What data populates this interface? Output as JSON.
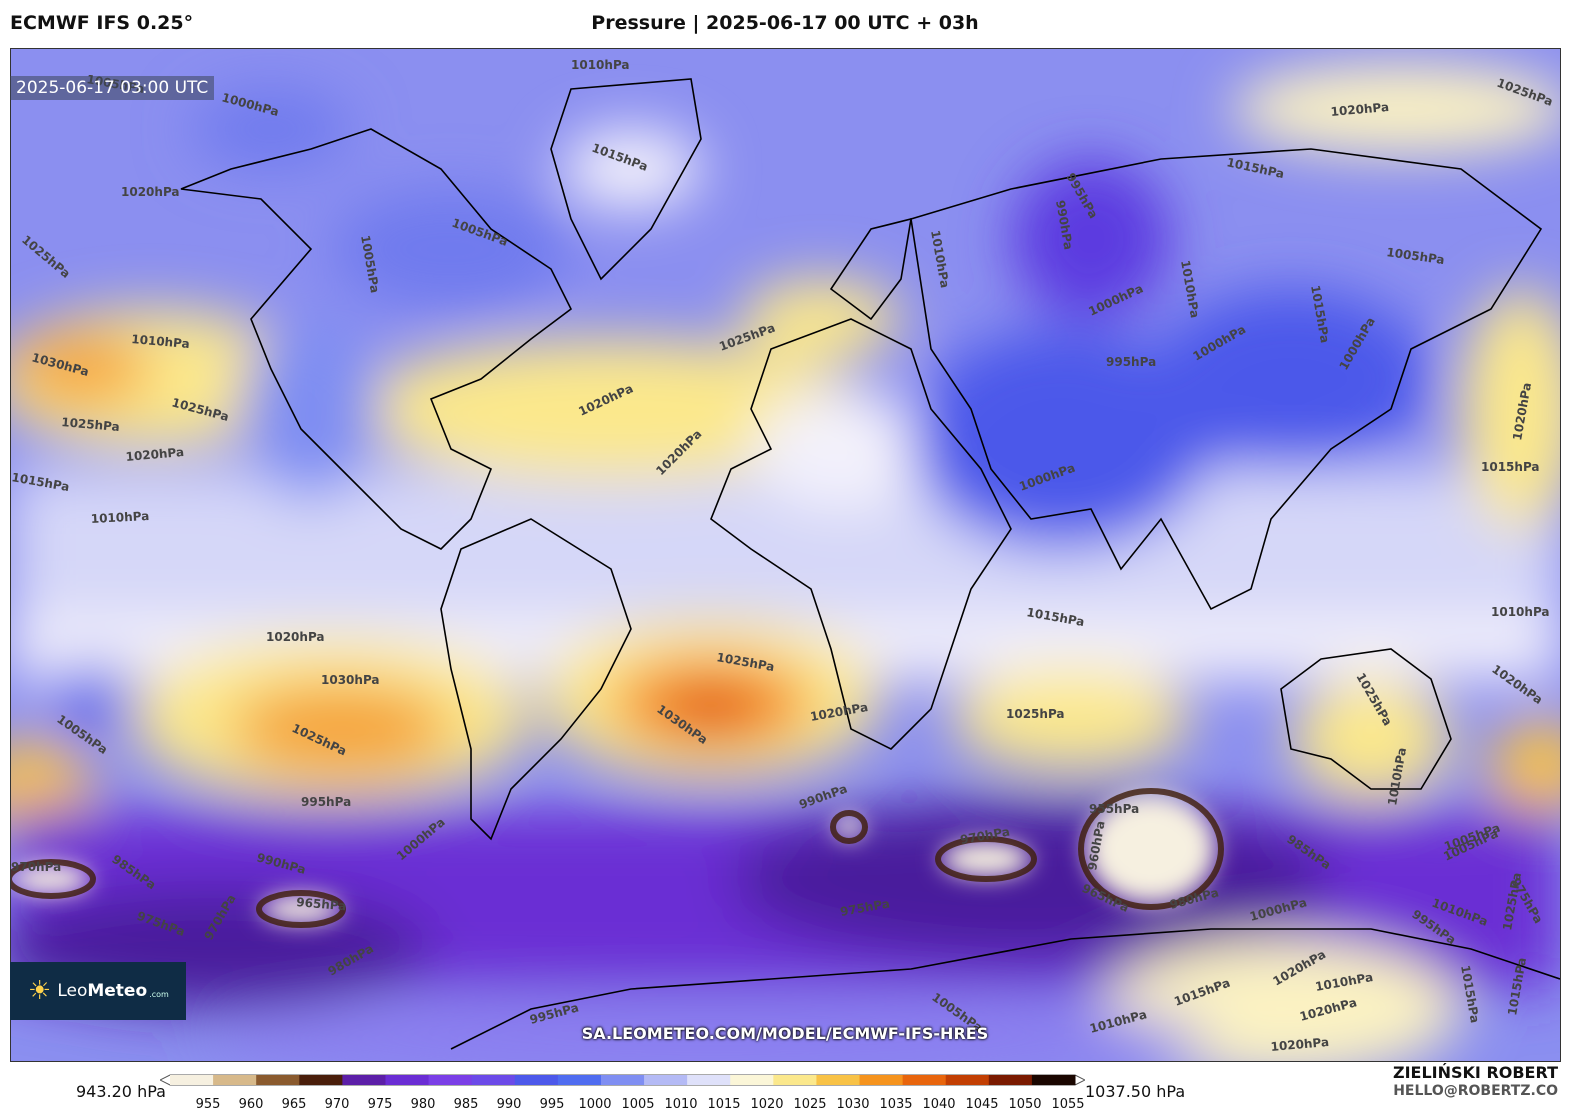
{
  "header": {
    "model": "ECMWF IFS 0.25°",
    "title": "Pressure | 2025-06-17 00 UTC + 03h"
  },
  "map": {
    "valid_time": "2025-06-17 03:00 UTC",
    "source_url": "SA.LEOMETEO.COM/MODEL/ECMWF-IFS-HRES",
    "isobar_labels": [
      "1010hPa",
      "1005hPa",
      "1000hPa",
      "1015hPa",
      "1005hPa",
      "1020hPa",
      "1025hPa",
      "1005hPa",
      "1010hPa",
      "1030hPa",
      "1025hPa",
      "1025hPa",
      "1020hPa",
      "1015hPa",
      "1010hPa",
      "1020hPa",
      "1025hPa",
      "1020hPa",
      "1010hPa",
      "995hPa",
      "990hPa",
      "1000hPa",
      "1010hPa",
      "1015hPa",
      "1005hPa",
      "1000hPa",
      "1015hPa",
      "1000hPa",
      "995hPa",
      "1000hPa",
      "1020hPa",
      "1025hPa",
      "1015hPa",
      "1010hPa",
      "1020hPa",
      "1030hPa",
      "1025hPa",
      "1005hPa",
      "1020hPa",
      "1025hPa",
      "1030hPa",
      "1020hPa",
      "1015hPa",
      "1025hPa",
      "1025hPa",
      "1020hPa",
      "1010hPa",
      "995hPa",
      "1000hPa",
      "990hPa",
      "970hPa",
      "955hPa",
      "960hPa",
      "965hPa",
      "985hPa",
      "980hPa",
      "975hPa",
      "1000hPa",
      "995hPa",
      "965hPa",
      "990hPa",
      "985hPa",
      "975hPa",
      "970hPa",
      "980hPa",
      "995hPa",
      "1005hPa",
      "1010hPa",
      "1015hPa",
      "1020hPa",
      "1005hPa",
      "975hPa",
      "1005hPa",
      "1010hPa",
      "1015hPa",
      "1020hPa",
      "1025hPa",
      "1015hPa",
      "1010hPa",
      "1020hPa",
      "970hPa"
    ],
    "colors": {
      "deep_low": "#3a0a8c",
      "low": "#6f2fe0",
      "mid_low": "#4a52e6",
      "neutral": "#c9ccf6",
      "high": "#fbe88c",
      "very_high": "#f58a1b",
      "peak_high": "#d93b00",
      "extreme_low": "#3d1c08"
    }
  },
  "logo": {
    "icon": "sun-icon",
    "brand_light": "Leo",
    "brand_bold": "Meteo",
    "brand_suffix": ".com"
  },
  "colorbar": {
    "min_label": "943.20 hPa",
    "max_label": "1037.50 hPa",
    "ticks": [
      "955",
      "960",
      "965",
      "970",
      "975",
      "980",
      "985",
      "990",
      "995",
      "1000",
      "1005",
      "1010",
      "1015",
      "1020",
      "1025",
      "1030",
      "1035",
      "1040",
      "1045",
      "1050",
      "1055"
    ],
    "colors": [
      "#f6f0e0",
      "#d7b98a",
      "#8a5a2e",
      "#4a1e0a",
      "#5c1fa8",
      "#6a2dd4",
      "#7a3ee6",
      "#6b4ae8",
      "#4c58ea",
      "#4f6cf0",
      "#7f8ef2",
      "#b4baf5",
      "#dfe1fa",
      "#fbf6d8",
      "#fbe88c",
      "#f8c246",
      "#f5931d",
      "#e8650c",
      "#c23e02",
      "#7a1a00",
      "#1a0600"
    ]
  },
  "author": {
    "name": "ZIELIŃSKI ROBERT",
    "email": "HELLO@ROBERTZ.CO"
  }
}
